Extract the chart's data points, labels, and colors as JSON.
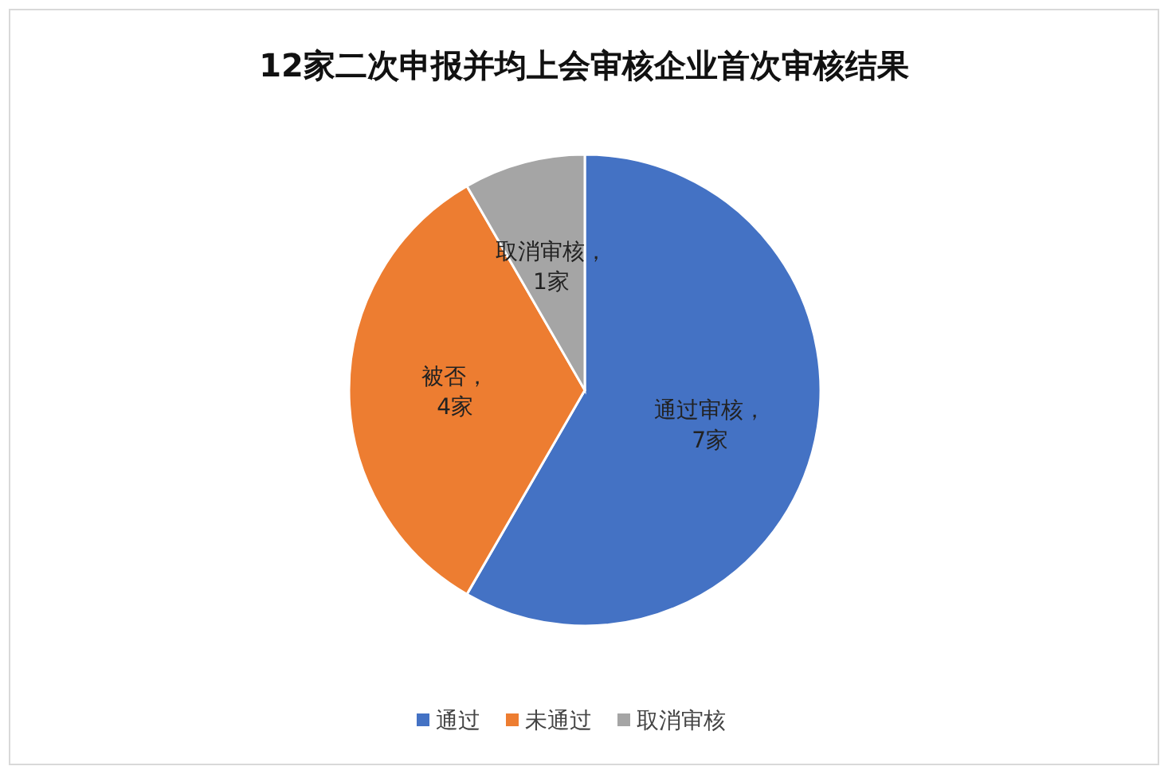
{
  "chart_data": {
    "type": "pie",
    "title": "12家二次申报并均上会审核企业首次审核结果",
    "categories": [
      "通过",
      "未通过",
      "取消审核"
    ],
    "values": [
      7,
      4,
      1
    ],
    "colors": [
      "#4472c4",
      "#ed7d31",
      "#a5a5a5"
    ],
    "value_labels": [
      "通过审核，7家",
      "被否，4家",
      "取消审核，1家"
    ],
    "legend": "bottom"
  }
}
